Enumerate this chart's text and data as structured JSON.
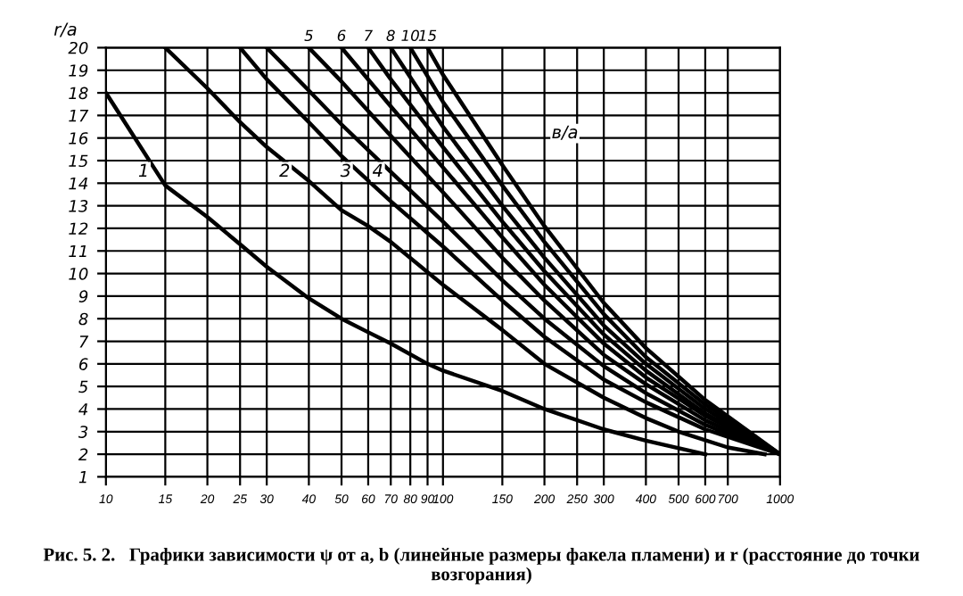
{
  "chart_data": {
    "type": "line",
    "ylabel": "r/a",
    "legend_title": "в/а",
    "xlim": [
      10,
      1000
    ],
    "ylim": [
      1,
      20
    ],
    "log": "x",
    "xticks": [
      10,
      15,
      20,
      25,
      30,
      40,
      50,
      60,
      70,
      80,
      90,
      100,
      150,
      200,
      250,
      300,
      400,
      500,
      600,
      700,
      1000
    ],
    "yticks": [
      1,
      2,
      3,
      4,
      5,
      6,
      7,
      8,
      9,
      10,
      11,
      12,
      13,
      14,
      15,
      16,
      17,
      18,
      19,
      20
    ],
    "grid": true,
    "legend": false,
    "marker": "none",
    "line_style": "solid",
    "series": [
      {
        "name": "1",
        "color": "#000000",
        "x": [
          10,
          15,
          20,
          25,
          30,
          40,
          50,
          60,
          70,
          90,
          100,
          150,
          200,
          300,
          400,
          600
        ],
        "values": [
          18,
          13.9,
          12.5,
          11.3,
          10.3,
          8.9,
          8.0,
          7.4,
          6.9,
          6.0,
          5.7,
          4.8,
          4.0,
          3.1,
          2.6,
          2.0
        ]
      },
      {
        "name": "2",
        "color": "#000000",
        "x": [
          15,
          20,
          25,
          30,
          40,
          50,
          60,
          70,
          100,
          150,
          200,
          300,
          400,
          500,
          700,
          900
        ],
        "values": [
          20,
          18.2,
          16.7,
          15.6,
          14.1,
          12.8,
          12.1,
          11.4,
          9.5,
          7.5,
          6.0,
          4.5,
          3.6,
          3.0,
          2.3,
          2.0
        ]
      },
      {
        "name": "3",
        "color": "#000000",
        "x": [
          25,
          30,
          40,
          50,
          70,
          100,
          150,
          200,
          300,
          400,
          600,
          1000
        ],
        "values": [
          20,
          18.6,
          16.7,
          15.2,
          13.2,
          11.2,
          8.8,
          7.2,
          5.3,
          4.3,
          3.1,
          2.0
        ]
      },
      {
        "name": "4",
        "color": "#000000",
        "x": [
          30,
          40,
          50,
          70,
          100,
          150,
          200,
          300,
          400,
          600,
          1000
        ],
        "values": [
          20,
          18.1,
          16.6,
          14.5,
          12.3,
          9.7,
          8.0,
          5.9,
          4.7,
          3.3,
          2.0
        ]
      },
      {
        "name": "5",
        "color": "#000000",
        "x": [
          40,
          50,
          70,
          100,
          150,
          200,
          300,
          400,
          600,
          1000
        ],
        "values": [
          20,
          18.5,
          16.1,
          13.6,
          10.7,
          8.8,
          6.4,
          5.1,
          3.5,
          2.0
        ]
      },
      {
        "name": "6",
        "color": "#000000",
        "x": [
          50,
          70,
          100,
          150,
          200,
          300,
          400,
          600,
          1000
        ],
        "values": [
          20,
          17.4,
          14.7,
          11.6,
          9.5,
          6.9,
          5.4,
          3.7,
          2.0
        ]
      },
      {
        "name": "7",
        "color": "#000000",
        "x": [
          60,
          70,
          100,
          150,
          200,
          300,
          400,
          600,
          1000
        ],
        "values": [
          20,
          18.6,
          15.6,
          12.3,
          10.1,
          7.3,
          5.7,
          3.8,
          2.0
        ]
      },
      {
        "name": "8",
        "color": "#000000",
        "x": [
          70,
          100,
          150,
          200,
          300,
          400,
          600,
          1000
        ],
        "values": [
          20,
          16.5,
          13.0,
          10.7,
          7.7,
          6.0,
          4.0,
          2.0
        ]
      },
      {
        "name": "10",
        "color": "#000000",
        "x": [
          80,
          100,
          150,
          200,
          300,
          400,
          600,
          1000
        ],
        "values": [
          20,
          17.6,
          13.9,
          11.4,
          8.2,
          6.3,
          4.2,
          2.0
        ]
      },
      {
        "name": "15",
        "color": "#000000",
        "x": [
          90,
          100,
          150,
          200,
          300,
          400,
          600,
          1000
        ],
        "values": [
          20,
          18.8,
          14.8,
          12.1,
          8.7,
          6.7,
          4.4,
          2.0
        ]
      }
    ],
    "annotations": [
      "Рис. 5. 2.   Графики зависимости ψ от a, b (линейные размеры факела пламени) и r (расстояние до точки возгорания)"
    ]
  }
}
